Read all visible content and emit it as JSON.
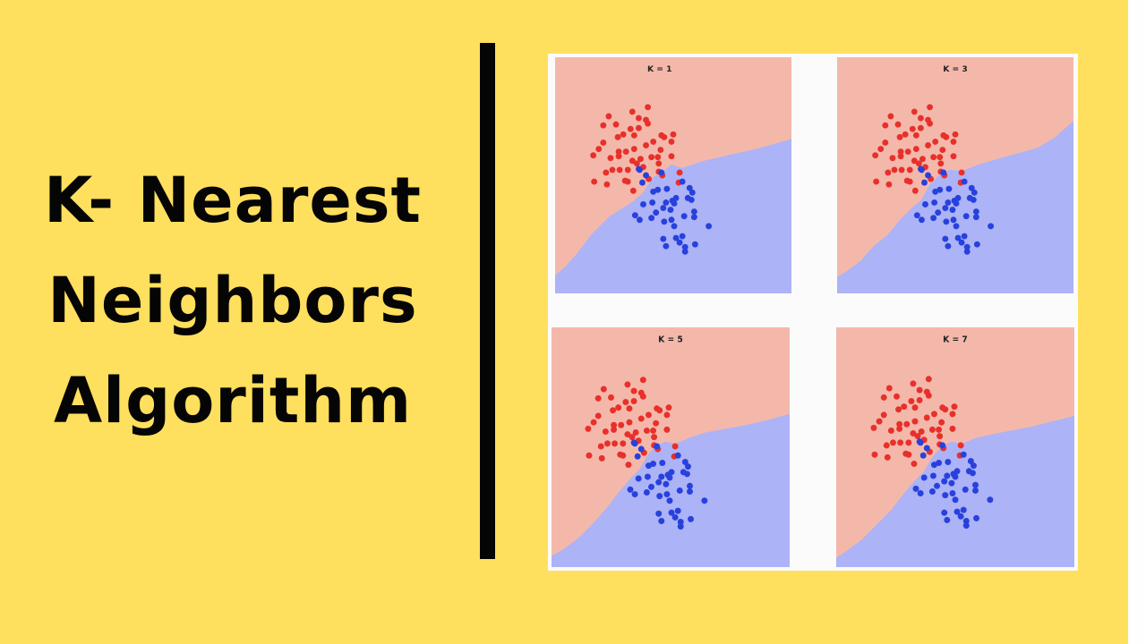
{
  "title": {
    "line1": "K- Nearest",
    "line2": "Neighbors",
    "line3": "Algorithm"
  },
  "colors": {
    "background": "#ffdf5e",
    "divider": "#050505",
    "class_red_region": "#f4b8ab",
    "class_blue_region": "#acb3f6",
    "class_red_point": "#e8302b",
    "class_blue_point": "#2841dd"
  },
  "plots": [
    {
      "label": "K = 1"
    },
    {
      "label": "K = 3"
    },
    {
      "label": "K = 5"
    },
    {
      "label": "K = 7"
    }
  ],
  "chart_data": {
    "type": "scatter",
    "ylim": [
      0,
      260
    ],
    "xlim": [
      0,
      260
    ],
    "series": [
      {
        "points": [
          [
            102,
            55
          ],
          [
            87,
            86
          ],
          [
            97,
            121
          ],
          [
            100,
            69
          ],
          [
            53,
            75
          ],
          [
            59,
            65
          ],
          [
            85,
            60
          ],
          [
            92,
            78
          ],
          [
            83,
            79
          ],
          [
            117,
            86
          ],
          [
            120,
            88
          ],
          [
            106,
            110
          ],
          [
            128,
            109
          ],
          [
            137,
            127
          ],
          [
            130,
            85
          ],
          [
            128,
            93
          ],
          [
            116,
            102
          ],
          [
            114,
            117
          ],
          [
            90,
            117
          ],
          [
            100,
            97
          ],
          [
            87,
            101
          ],
          [
            78,
            104
          ],
          [
            70,
            104
          ],
          [
            69,
            88
          ],
          [
            67,
            74
          ],
          [
            75,
            85
          ],
          [
            70,
            109
          ],
          [
            85,
            114
          ],
          [
            80,
            124
          ],
          [
            80,
            137
          ],
          [
            71,
            124
          ],
          [
            77,
            136
          ],
          [
            94,
            112
          ],
          [
            103,
            134
          ],
          [
            113,
            110
          ],
          [
            48,
            101
          ],
          [
            56,
            127
          ],
          [
            57,
            140
          ],
          [
            43,
            137
          ],
          [
            63,
            124
          ],
          [
            114,
            126
          ],
          [
            108,
            93
          ],
          [
            118,
            130
          ],
          [
            136,
            138
          ],
          [
            42,
            108
          ],
          [
            86,
            147
          ],
          [
            92,
            67
          ],
          [
            102,
            73
          ],
          [
            53,
            94
          ],
          [
            61,
            111
          ]
        ]
      },
      {
        "points": [
          [
            96,
            138
          ],
          [
            93,
            124
          ],
          [
            107,
            160
          ],
          [
            133,
            155
          ],
          [
            146,
            155
          ],
          [
            153,
            170
          ],
          [
            140,
            197
          ],
          [
            120,
            181
          ],
          [
            122,
            160
          ],
          [
            111,
            171
          ],
          [
            106,
            177
          ],
          [
            127,
            168
          ],
          [
            148,
            144
          ],
          [
            129,
            158
          ],
          [
            128,
            179
          ],
          [
            119,
            200
          ],
          [
            131,
            186
          ],
          [
            153,
            176
          ],
          [
            142,
            175
          ],
          [
            150,
            157
          ],
          [
            122,
            208
          ],
          [
            131,
            161
          ],
          [
            123,
            145
          ],
          [
            93,
            179
          ],
          [
            97,
            162
          ],
          [
            133,
            199
          ],
          [
            143,
            209
          ],
          [
            137,
            204
          ],
          [
            113,
            146
          ],
          [
            108,
            148
          ],
          [
            88,
            174
          ],
          [
            119,
            166
          ],
          [
            151,
            149
          ],
          [
            169,
            186
          ],
          [
            154,
            206
          ],
          [
            92,
            123
          ],
          [
            100,
            130
          ],
          [
            117,
            127
          ],
          [
            140,
            137
          ],
          [
            143,
            214
          ]
        ]
      }
    ]
  }
}
